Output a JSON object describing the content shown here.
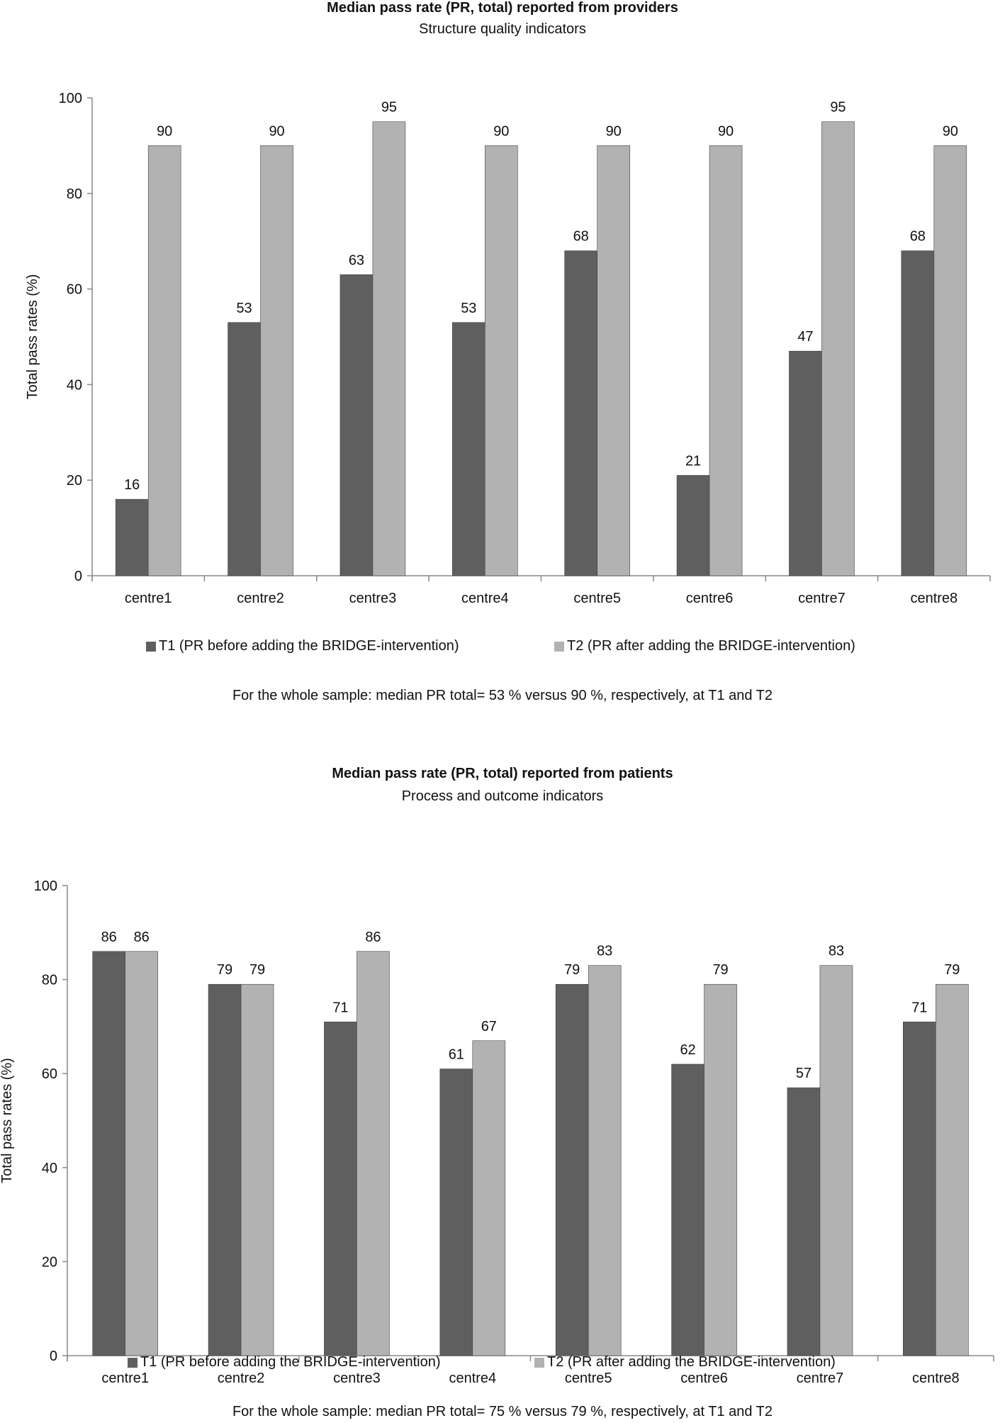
{
  "chart_data": [
    {
      "type": "bar",
      "title": "Median pass rate (PR, total) reported from providers",
      "subtitle": "Structure quality indicators",
      "xlabel": "",
      "ylabel": "Total pass rates (%)",
      "ylim": [
        0,
        100
      ],
      "yticks": [
        0,
        20,
        40,
        60,
        80,
        100
      ],
      "categories": [
        "centre1",
        "centre2",
        "centre3",
        "centre4",
        "centre5",
        "centre6",
        "centre7",
        "centre8"
      ],
      "series": [
        {
          "name": "T1 (PR before adding the BRIDGE-intervention)",
          "color": "#5f5f5f",
          "values": [
            16,
            53,
            63,
            53,
            68,
            21,
            47,
            68
          ]
        },
        {
          "name": "T2 (PR after adding the BRIDGE-intervention)",
          "color": "#b2b2b2",
          "values": [
            90,
            90,
            95,
            90,
            90,
            90,
            95,
            90
          ]
        }
      ],
      "grid": false,
      "legend": "bottom",
      "note": "For the whole sample: median PR total= 53 % versus 90 %, respectively, at T1 and T2"
    },
    {
      "type": "bar",
      "title": "Median pass rate (PR, total) reported from patients",
      "subtitle": "Process and outcome indicators",
      "xlabel": "",
      "ylabel": "Total pass rates (%)",
      "ylim": [
        0,
        100
      ],
      "yticks": [
        0,
        20,
        40,
        60,
        80,
        100
      ],
      "categories": [
        "centre1",
        "centre2",
        "centre3",
        "centre4",
        "centre5",
        "centre6",
        "centre7",
        "centre8"
      ],
      "series": [
        {
          "name": "T1 (PR before adding the BRIDGE-intervention)",
          "color": "#5f5f5f",
          "values": [
            86,
            79,
            71,
            61,
            79,
            62,
            57,
            71
          ]
        },
        {
          "name": "T2 (PR after adding the BRIDGE-intervention)",
          "color": "#b2b2b2",
          "values": [
            86,
            79,
            86,
            67,
            83,
            79,
            83,
            79
          ]
        }
      ],
      "grid": false,
      "legend": "bottom",
      "note": "For the whole sample: median PR total= 75 % versus 79 %, respectively, at T1 and T2"
    }
  ]
}
